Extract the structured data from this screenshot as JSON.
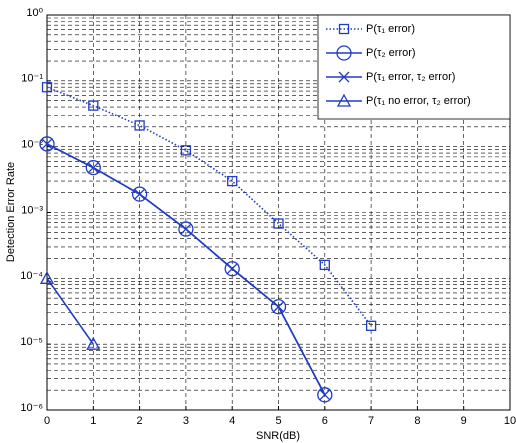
{
  "chart_data": {
    "type": "line",
    "xlabel": "SNR(dB)",
    "ylabel": "Detection Error Rate",
    "log_y": true,
    "grid": true,
    "minor_grid": true,
    "legend": "upper right",
    "xlim": [
      0,
      10
    ],
    "xticks": [
      0,
      1,
      2,
      3,
      4,
      5,
      6,
      7,
      8,
      9,
      10
    ],
    "ylim": [
      1e-06,
      1
    ],
    "yticks": [
      {
        "value": 1e-06,
        "label": "10⁻⁶"
      },
      {
        "value": 1e-05,
        "label": "10⁻⁵"
      },
      {
        "value": 0.0001,
        "label": "10⁻⁴"
      },
      {
        "value": 0.001,
        "label": "10⁻³"
      },
      {
        "value": 0.01,
        "label": "10⁻²"
      },
      {
        "value": 0.1,
        "label": "10⁻¹"
      },
      {
        "value": 1,
        "label": "10⁰"
      }
    ],
    "series": [
      {
        "name": "P(τ₁ error)",
        "color": "#1f3cc4",
        "line": "dotted",
        "marker": "square",
        "x": [
          0,
          1,
          2,
          3,
          4,
          5,
          6,
          7
        ],
        "values": [
          0.08,
          0.042,
          0.021,
          0.0088,
          0.003,
          0.00068,
          0.00016,
          1.9e-05
        ]
      },
      {
        "name": "P(τ₂ error)",
        "color": "#1f3cc4",
        "line": "solid",
        "marker": "circle",
        "x": [
          0,
          1,
          2,
          3,
          4,
          5,
          6
        ],
        "values": [
          0.011,
          0.0048,
          0.0019,
          0.00056,
          0.00014,
          3.7e-05,
          1.7e-06
        ]
      },
      {
        "name": "P(τ₁ error, τ₂ error)",
        "color": "#1f3cc4",
        "line": "solid",
        "marker": "cross",
        "x": [
          0,
          1,
          2,
          3,
          4,
          5,
          6
        ],
        "values": [
          0.011,
          0.0048,
          0.0019,
          0.00056,
          0.00014,
          3.7e-05,
          1.7e-06
        ]
      },
      {
        "name": "P(τ₁ no error, τ₂ error)",
        "color": "#1f3cc4",
        "line": "solid",
        "marker": "triangle",
        "x": [
          0,
          1
        ],
        "values": [
          0.0001,
          1e-05
        ]
      }
    ]
  }
}
